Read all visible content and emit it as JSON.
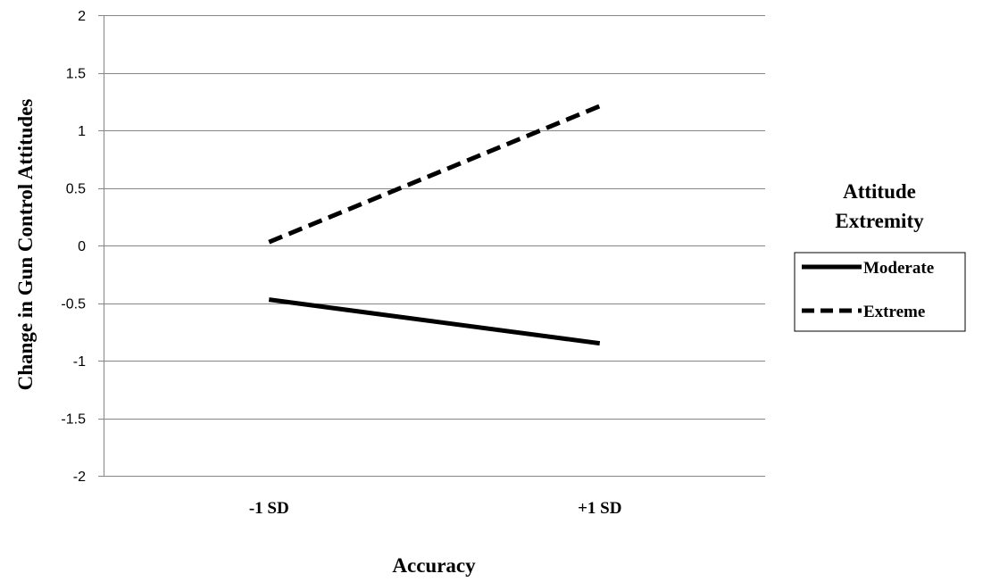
{
  "chart_data": {
    "type": "line",
    "categories": [
      "-1 SD",
      "+1 SD"
    ],
    "series": [
      {
        "name": "Moderate",
        "values": [
          -0.47,
          -0.85
        ],
        "style": "solid",
        "color": "#000000"
      },
      {
        "name": "Extreme",
        "values": [
          0.03,
          1.21
        ],
        "style": "dashed",
        "color": "#000000"
      }
    ],
    "title": "",
    "xlabel": "Accuracy",
    "ylabel": "Change in Gun Control Attitudes",
    "ylim": [
      -2,
      2
    ],
    "yticks": [
      "-2",
      "-1.5",
      "-1",
      "-0.5",
      "0",
      "0.5",
      "1",
      "1.5",
      "2"
    ],
    "ytick_values": [
      -2,
      -1.5,
      -1,
      -0.5,
      0,
      0.5,
      1,
      1.5,
      2
    ],
    "grid": true,
    "legend": {
      "title_line1": "Attitude",
      "title_line2": "Extremity",
      "placement": "right"
    }
  }
}
